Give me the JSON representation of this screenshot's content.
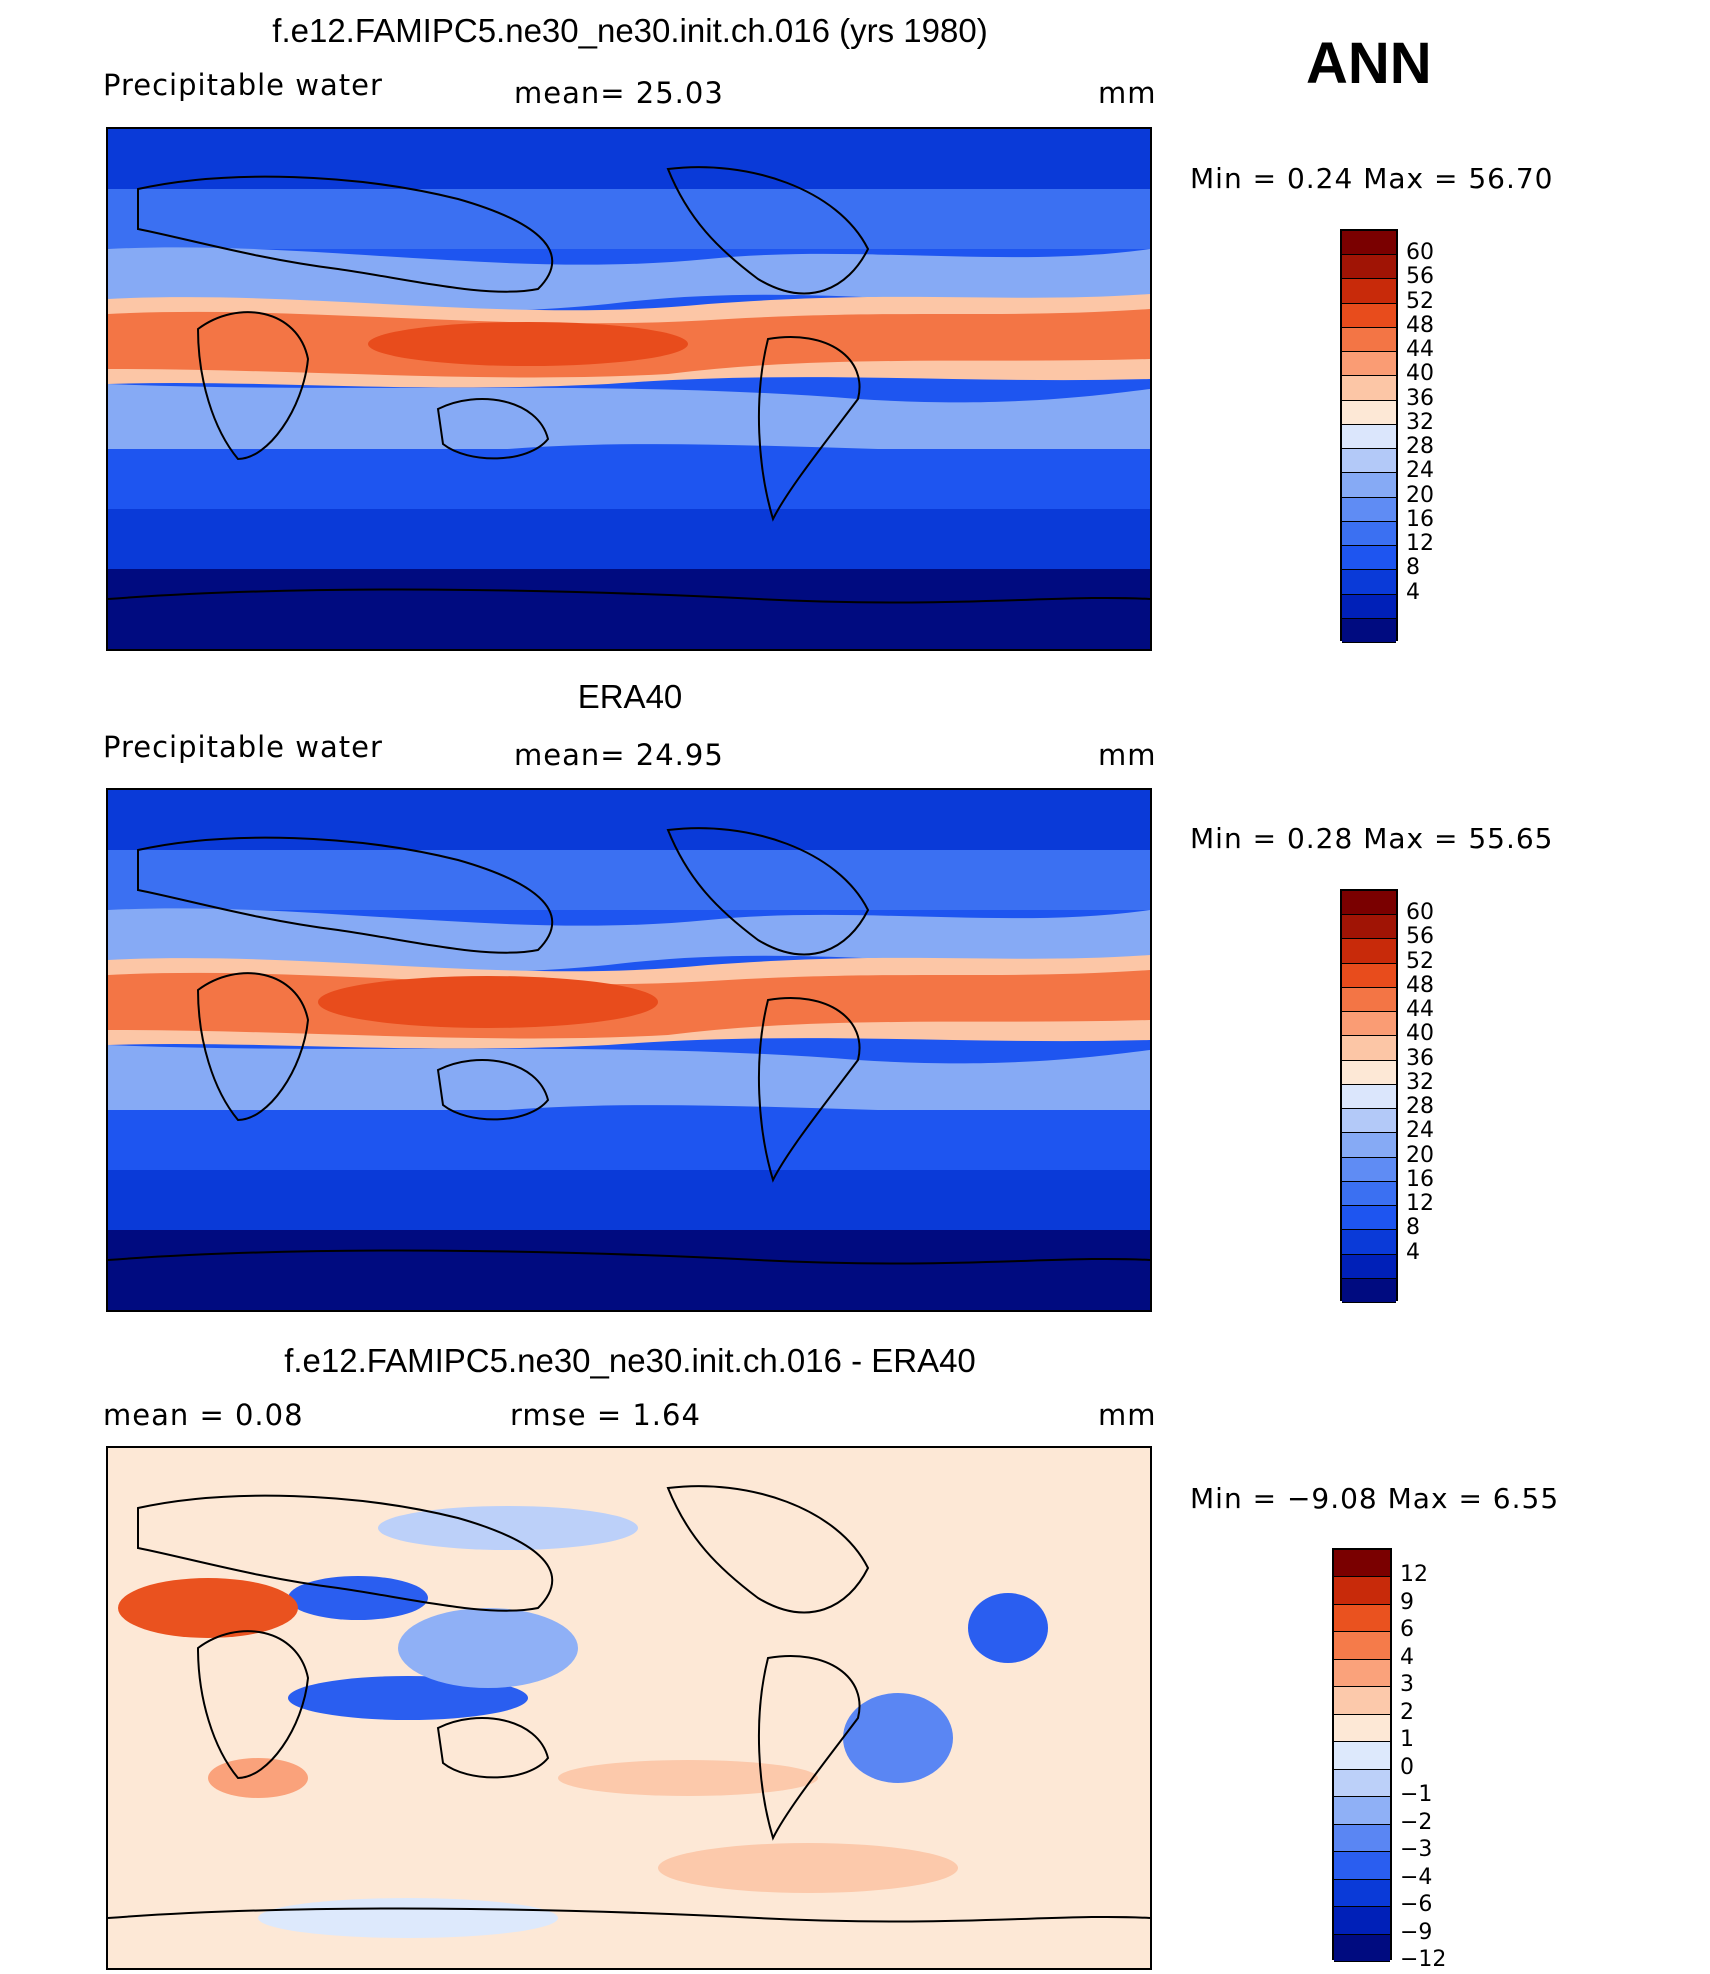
{
  "season": "ANN",
  "colors": {
    "pw": [
      "#000b80",
      "#0020b8",
      "#0a3ad8",
      "#1e55f0",
      "#3b70f2",
      "#5f8cf4",
      "#86aaf5",
      "#b3c9f8",
      "#dbe6fc",
      "#fde8d6",
      "#fcc6a6",
      "#fa9c74",
      "#f37545",
      "#e84c1c",
      "#c82a0a",
      "#a01405",
      "#7a0000"
    ],
    "diff": [
      "#000b80",
      "#0020b8",
      "#0a3ad8",
      "#2a5ef0",
      "#5a86f3",
      "#8fb0f6",
      "#bcd0f9",
      "#dde9fc",
      "#fde8d6",
      "#fcc9ab",
      "#faa27b",
      "#f57b4a",
      "#ea521f",
      "#c82a0a",
      "#7a0000"
    ]
  },
  "panels": [
    {
      "title": "f.e12.FAMIPC5.ne30_ne30.init.ch.016 (yrs 1980)",
      "left_label": "Precipitable  water",
      "center_label": "mean=   25.03",
      "units": "mm",
      "minmax": "Min  =     0.24  Max  =    56.70",
      "colorbar": {
        "scheme": "pw",
        "ticks": [
          "60",
          "56",
          "52",
          "48",
          "44",
          "40",
          "36",
          "32",
          "28",
          "24",
          "20",
          "16",
          "12",
          "8",
          "4"
        ]
      }
    },
    {
      "title": "ERA40",
      "left_label": "Precipitable  water",
      "center_label": "mean=   24.95",
      "units": "mm",
      "minmax": "Min  =     0.28  Max  =    55.65",
      "colorbar": {
        "scheme": "pw",
        "ticks": [
          "60",
          "56",
          "52",
          "48",
          "44",
          "40",
          "36",
          "32",
          "28",
          "24",
          "20",
          "16",
          "12",
          "8",
          "4"
        ]
      }
    },
    {
      "title": "f.e12.FAMIPC5.ne30_ne30.init.ch.016 - ERA40",
      "left_label": "mean  =     0.08",
      "center_label": "rmse  =     1.64",
      "units": "mm",
      "minmax": "Min  =   −9.08  Max  =      6.55",
      "colorbar": {
        "scheme": "diff",
        "ticks": [
          "12",
          "9",
          "6",
          "4",
          "3",
          "2",
          "1",
          "0",
          "−1",
          "−2",
          "−3",
          "−4",
          "−6",
          "−9",
          "−12"
        ]
      }
    }
  ]
}
